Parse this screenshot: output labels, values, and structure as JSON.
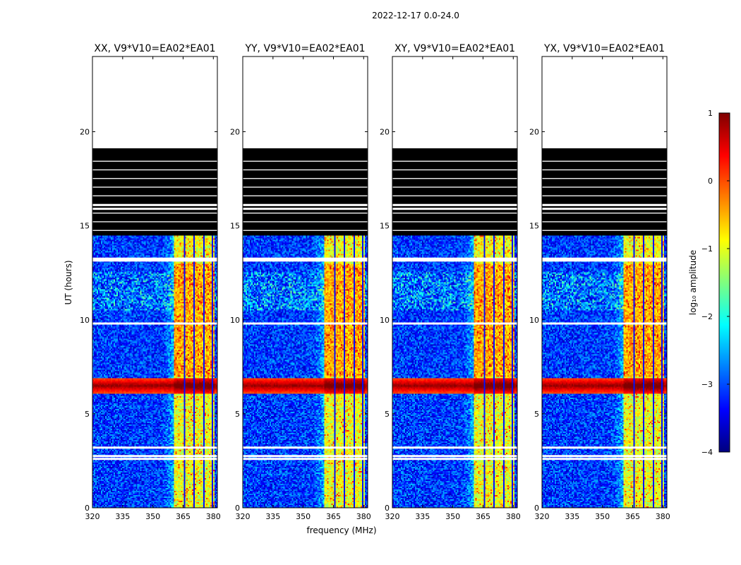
{
  "chart_data": {
    "type": "heatmap",
    "title": "2022-12-17 0.0-24.0",
    "xlabel": "frequency (MHz)",
    "ylabel": "UT (hours)",
    "xlim": [
      320,
      382
    ],
    "ylim": [
      0,
      24
    ],
    "x_ticks": [
      320,
      335,
      350,
      365,
      380
    ],
    "y_ticks": [
      0,
      5,
      10,
      15,
      20
    ],
    "panels": [
      {
        "title": "XX, V9*V10=EA02*EA01",
        "rfi_start_mhz": 360.5,
        "rfi_end_mhz": 380.5
      },
      {
        "title": "YY, V9*V10=EA02*EA01",
        "rfi_start_mhz": 360.5,
        "rfi_end_mhz": 380.5
      },
      {
        "title": "XY, V9*V10=EA02*EA01",
        "rfi_start_mhz": 360.5,
        "rfi_end_mhz": 380.5
      },
      {
        "title": "YX, V9*V10=EA02*EA01",
        "rfi_start_mhz": 360.5,
        "rfi_end_mhz": 380.5
      }
    ],
    "rfi_channel_lines_mhz": [
      365.3,
      370.3,
      375.3,
      379.3
    ],
    "bright_band_hours": [
      6.1,
      6.9
    ],
    "flagged_block_hours": [
      14.5,
      19.1
    ],
    "no_data_above_hours": 19.1,
    "gap_rows_hours": [
      2.6,
      2.75,
      3.2,
      9.8,
      13.15,
      13.25,
      15.9,
      16.1
    ],
    "colorbar": {
      "label": "log₁₀ amplitude",
      "range": [
        -4,
        1
      ],
      "ticks": [
        1,
        0,
        -1,
        -2,
        -3,
        -4
      ],
      "colormap": [
        "#00007f",
        "#0000ff",
        "#007fff",
        "#00ffff",
        "#7fff7f",
        "#ffff00",
        "#ff7f00",
        "#ff0000",
        "#7f0000"
      ]
    }
  }
}
